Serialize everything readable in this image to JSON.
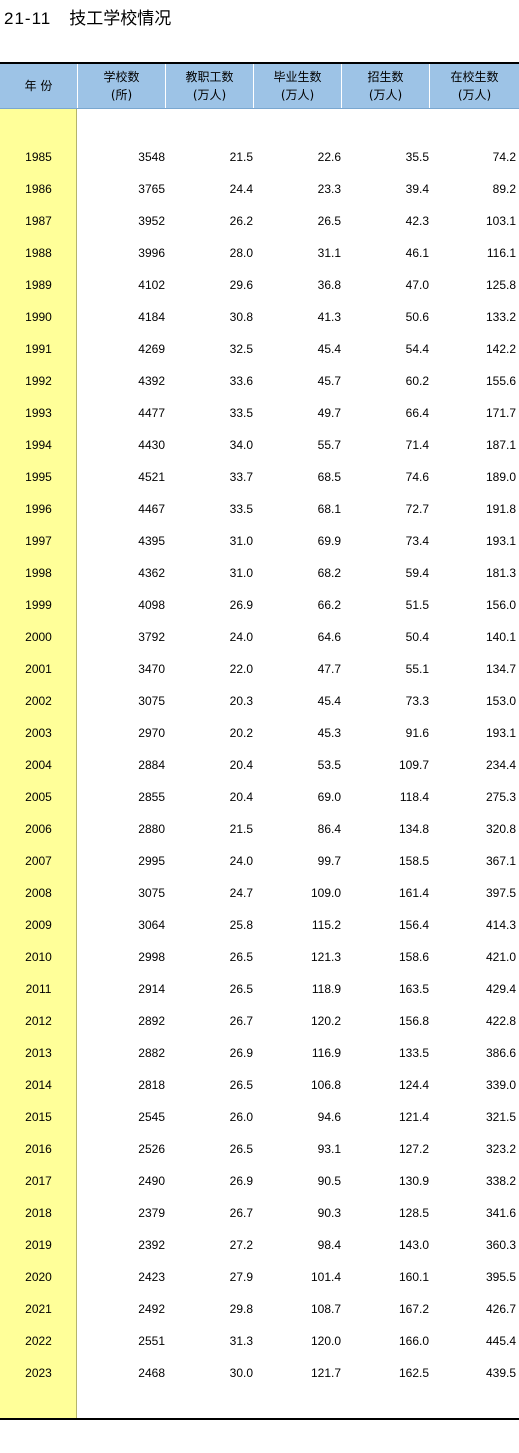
{
  "table": {
    "number": "21-11",
    "title": "技工学校情况",
    "headers": [
      {
        "line1": "年 份",
        "line2": ""
      },
      {
        "line1": "学校数",
        "line2": "(所)"
      },
      {
        "line1": "教职工数",
        "line2": "(万人)"
      },
      {
        "line1": "毕业生数",
        "line2": "(万人)"
      },
      {
        "line1": "招生数",
        "line2": "(万人)"
      },
      {
        "line1": "在校生数",
        "line2": "(万人)"
      }
    ],
    "rows": [
      [
        "1985",
        "3548",
        "21.5",
        "22.6",
        "35.5",
        "74.2"
      ],
      [
        "1986",
        "3765",
        "24.4",
        "23.3",
        "39.4",
        "89.2"
      ],
      [
        "1987",
        "3952",
        "26.2",
        "26.5",
        "42.3",
        "103.1"
      ],
      [
        "1988",
        "3996",
        "28.0",
        "31.1",
        "46.1",
        "116.1"
      ],
      [
        "1989",
        "4102",
        "29.6",
        "36.8",
        "47.0",
        "125.8"
      ],
      [
        "1990",
        "4184",
        "30.8",
        "41.3",
        "50.6",
        "133.2"
      ],
      [
        "1991",
        "4269",
        "32.5",
        "45.4",
        "54.4",
        "142.2"
      ],
      [
        "1992",
        "4392",
        "33.6",
        "45.7",
        "60.2",
        "155.6"
      ],
      [
        "1993",
        "4477",
        "33.5",
        "49.7",
        "66.4",
        "171.7"
      ],
      [
        "1994",
        "4430",
        "34.0",
        "55.7",
        "71.4",
        "187.1"
      ],
      [
        "1995",
        "4521",
        "33.7",
        "68.5",
        "74.6",
        "189.0"
      ],
      [
        "1996",
        "4467",
        "33.5",
        "68.1",
        "72.7",
        "191.8"
      ],
      [
        "1997",
        "4395",
        "31.0",
        "69.9",
        "73.4",
        "193.1"
      ],
      [
        "1998",
        "4362",
        "31.0",
        "68.2",
        "59.4",
        "181.3"
      ],
      [
        "1999",
        "4098",
        "26.9",
        "66.2",
        "51.5",
        "156.0"
      ],
      [
        "2000",
        "3792",
        "24.0",
        "64.6",
        "50.4",
        "140.1"
      ],
      [
        "2001",
        "3470",
        "22.0",
        "47.7",
        "55.1",
        "134.7"
      ],
      [
        "2002",
        "3075",
        "20.3",
        "45.4",
        "73.3",
        "153.0"
      ],
      [
        "2003",
        "2970",
        "20.2",
        "45.3",
        "91.6",
        "193.1"
      ],
      [
        "2004",
        "2884",
        "20.4",
        "53.5",
        "109.7",
        "234.4"
      ],
      [
        "2005",
        "2855",
        "20.4",
        "69.0",
        "118.4",
        "275.3"
      ],
      [
        "2006",
        "2880",
        "21.5",
        "86.4",
        "134.8",
        "320.8"
      ],
      [
        "2007",
        "2995",
        "24.0",
        "99.7",
        "158.5",
        "367.1"
      ],
      [
        "2008",
        "3075",
        "24.7",
        "109.0",
        "161.4",
        "397.5"
      ],
      [
        "2009",
        "3064",
        "25.8",
        "115.2",
        "156.4",
        "414.3"
      ],
      [
        "2010",
        "2998",
        "26.5",
        "121.3",
        "158.6",
        "421.0"
      ],
      [
        "2011",
        "2914",
        "26.5",
        "118.9",
        "163.5",
        "429.4"
      ],
      [
        "2012",
        "2892",
        "26.7",
        "120.2",
        "156.8",
        "422.8"
      ],
      [
        "2013",
        "2882",
        "26.9",
        "116.9",
        "133.5",
        "386.6"
      ],
      [
        "2014",
        "2818",
        "26.5",
        "106.8",
        "124.4",
        "339.0"
      ],
      [
        "2015",
        "2545",
        "26.0",
        "94.6",
        "121.4",
        "321.5"
      ],
      [
        "2016",
        "2526",
        "26.5",
        "93.1",
        "127.2",
        "323.2"
      ],
      [
        "2017",
        "2490",
        "26.9",
        "90.5",
        "130.9",
        "338.2"
      ],
      [
        "2018",
        "2379",
        "26.7",
        "90.3",
        "128.5",
        "341.6"
      ],
      [
        "2019",
        "2392",
        "27.2",
        "98.4",
        "143.0",
        "360.3"
      ],
      [
        "2020",
        "2423",
        "27.9",
        "101.4",
        "160.1",
        "395.5"
      ],
      [
        "2021",
        "2492",
        "29.8",
        "108.7",
        "167.2",
        "426.7"
      ],
      [
        "2022",
        "2551",
        "31.3",
        "120.0",
        "166.0",
        "445.4"
      ],
      [
        "2023",
        "2468",
        "30.0",
        "121.7",
        "162.5",
        "439.5"
      ]
    ]
  }
}
